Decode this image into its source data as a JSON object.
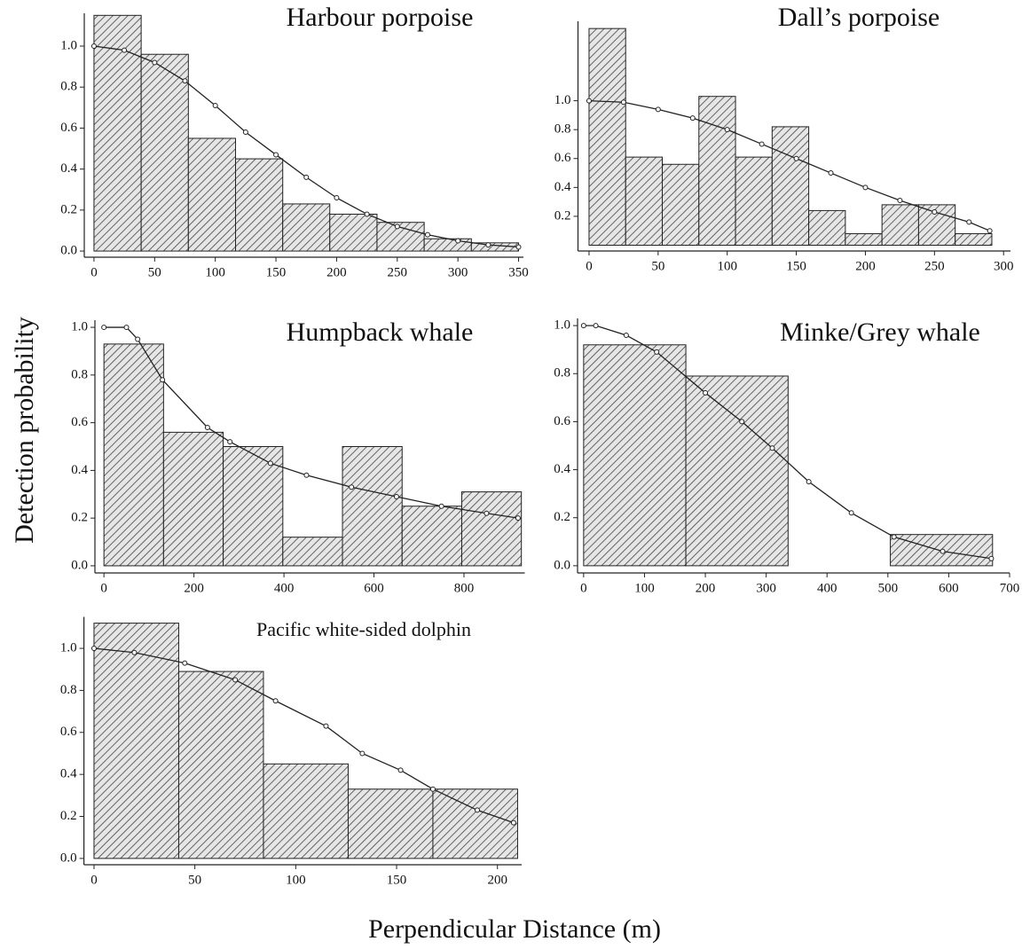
{
  "ylabel": "Detection probability",
  "xlabel": "Perpendicular Distance (m)",
  "chart_data": [
    {
      "type": "histogram",
      "title": "Harbour porpoise",
      "bins": [
        0,
        38.9,
        77.8,
        116.7,
        155.6,
        194.4,
        233.3,
        272.2,
        311.1,
        350
      ],
      "counts": [
        1.15,
        0.96,
        0.55,
        0.45,
        0.23,
        0.18,
        0.14,
        0.06,
        0.04
      ],
      "curve_x": [
        0,
        25,
        50,
        75,
        100,
        125,
        150,
        175,
        200,
        225,
        250,
        275,
        300,
        325,
        350
      ],
      "curve_y": [
        1.0,
        0.98,
        0.92,
        0.83,
        0.71,
        0.58,
        0.47,
        0.36,
        0.26,
        0.18,
        0.12,
        0.08,
        0.05,
        0.03,
        0.02
      ],
      "xlim": [
        -8,
        354
      ],
      "ylim": [
        -0.03,
        1.16
      ],
      "xticks": [
        0,
        50,
        100,
        150,
        200,
        250,
        300,
        350
      ],
      "yticks": [
        {
          "value": 0,
          "label": "0.0"
        },
        0.2,
        0.4,
        0.6,
        0.8,
        {
          "value": 1,
          "label": "1.0"
        }
      ]
    },
    {
      "type": "histogram",
      "title": "Dall’s porpoise",
      "bins": [
        0,
        26.5,
        53,
        79.5,
        106,
        132.5,
        159,
        185.5,
        212,
        238.5,
        265,
        291.5
      ],
      "counts": [
        1.5,
        0.61,
        0.56,
        1.03,
        0.61,
        0.82,
        0.24,
        0.08,
        0.28,
        0.28,
        0.08
      ],
      "curve_x": [
        0,
        25,
        50,
        75,
        100,
        125,
        150,
        175,
        200,
        225,
        250,
        275,
        290
      ],
      "curve_y": [
        1.0,
        0.99,
        0.94,
        0.88,
        0.8,
        0.7,
        0.6,
        0.5,
        0.4,
        0.31,
        0.23,
        0.16,
        0.1
      ],
      "xlim": [
        -8,
        305
      ],
      "ylim": [
        -0.04,
        1.55
      ],
      "xticks": [
        0,
        50,
        100,
        150,
        200,
        250,
        300
      ],
      "yticks": [
        0.2,
        0.4,
        0.6,
        0.8,
        {
          "value": 1,
          "label": "1.0"
        }
      ]
    },
    {
      "type": "histogram",
      "title": "Humpback whale",
      "bins": [
        0,
        132.5,
        265,
        397.5,
        530,
        662.5,
        795,
        927.5
      ],
      "counts": [
        0.93,
        0.56,
        0.5,
        0.12,
        0.5,
        0.25,
        0.31
      ],
      "curve_x": [
        0,
        50,
        75,
        130,
        230,
        280,
        370,
        450,
        550,
        650,
        750,
        850,
        920
      ],
      "curve_y": [
        1.0,
        1.0,
        0.95,
        0.78,
        0.58,
        0.52,
        0.43,
        0.38,
        0.33,
        0.29,
        0.25,
        0.22,
        0.2
      ],
      "xlim": [
        -20,
        935
      ],
      "ylim": [
        -0.03,
        1.03
      ],
      "xticks": [
        0,
        200,
        400,
        600,
        800
      ],
      "yticks": [
        {
          "value": 0,
          "label": "0.0"
        },
        0.2,
        0.4,
        0.6,
        0.8,
        {
          "value": 1,
          "label": "1.0"
        }
      ]
    },
    {
      "type": "histogram",
      "title": "Minke/Grey whale",
      "bins": [
        0,
        168,
        336,
        504,
        672
      ],
      "counts": [
        0.92,
        0.79,
        0,
        0.13
      ],
      "curve_x": [
        0,
        20,
        70,
        120,
        200,
        260,
        310,
        370,
        440,
        510,
        590,
        670
      ],
      "curve_y": [
        1.0,
        1.0,
        0.96,
        0.89,
        0.72,
        0.6,
        0.49,
        0.35,
        0.22,
        0.12,
        0.06,
        0.03
      ],
      "xlim": [
        -10,
        700
      ],
      "ylim": [
        -0.03,
        1.03
      ],
      "xticks": [
        0,
        100,
        200,
        300,
        400,
        500,
        600,
        700
      ],
      "yticks": [
        {
          "value": 0,
          "label": "0.0"
        },
        0.2,
        0.4,
        0.6,
        0.8,
        {
          "value": 1,
          "label": "1.0"
        }
      ]
    },
    {
      "type": "histogram",
      "title": "Pacific white-sided dolphin",
      "bins": [
        0,
        42,
        84,
        126,
        168,
        210
      ],
      "counts": [
        1.12,
        0.89,
        0.45,
        0.33,
        0.33
      ],
      "curve_x": [
        0,
        20,
        45,
        70,
        90,
        115,
        133,
        152,
        168,
        190,
        208
      ],
      "curve_y": [
        1.0,
        0.98,
        0.93,
        0.85,
        0.75,
        0.63,
        0.5,
        0.42,
        0.33,
        0.23,
        0.17
      ],
      "xlim": [
        -5,
        212
      ],
      "ylim": [
        -0.03,
        1.15
      ],
      "xticks": [
        0,
        50,
        100,
        150,
        200
      ],
      "yticks": [
        {
          "value": 0,
          "label": "0.0"
        },
        0.2,
        0.4,
        0.6,
        0.8,
        {
          "value": 1,
          "label": "1.0"
        }
      ]
    }
  ]
}
